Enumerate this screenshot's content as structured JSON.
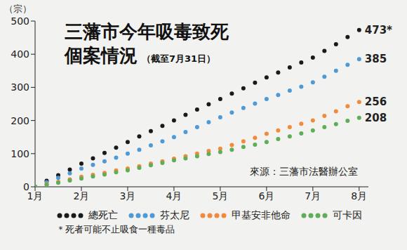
{
  "chart_data": {
    "type": "line",
    "title": [
      "三藩市今年吸毒致死",
      "個案情況"
    ],
    "subtitle": "（截至7月31日）",
    "y_label": "（宗）",
    "annotations": [
      "來源：三藩市法醫辦公室",
      "＊死者可能不止吸食一種毒品"
    ],
    "x": [
      1,
      1.25,
      1.5,
      1.75,
      2,
      2.25,
      2.5,
      2.75,
      3,
      3.25,
      3.5,
      3.75,
      4,
      4.25,
      4.5,
      4.75,
      5,
      5.25,
      5.5,
      5.75,
      6,
      6.25,
      6.5,
      6.75,
      7,
      7.25,
      7.5,
      7.75,
      8
    ],
    "xlim": [
      1,
      8.2
    ],
    "xticks": [
      {
        "value": 1,
        "label": "1月"
      },
      {
        "value": 2,
        "label": "2月"
      },
      {
        "value": 3,
        "label": "3月"
      },
      {
        "value": 4,
        "label": "4月"
      },
      {
        "value": 5,
        "label": "5月"
      },
      {
        "value": 6,
        "label": "6月"
      },
      {
        "value": 7,
        "label": "7月"
      },
      {
        "value": 8,
        "label": "8月"
      }
    ],
    "ylim": [
      0,
      500
    ],
    "yticks": [
      0,
      100,
      200,
      300,
      400,
      500
    ],
    "grid": false,
    "legend": "bottom",
    "marker": "circle",
    "line_style": "none",
    "series": [
      {
        "name": "總死亡",
        "color": "#1a1a1a",
        "values": [
          0,
          18,
          35,
          52,
          70,
          86,
          102,
          118,
          135,
          152,
          168,
          184,
          200,
          217,
          233,
          249,
          265,
          281,
          297,
          314,
          330,
          345,
          360,
          375,
          390,
          410,
          430,
          452,
          473
        ],
        "value_labels": [
          null,
          null,
          null,
          null,
          null,
          null,
          null,
          null,
          null,
          null,
          null,
          null,
          null,
          null,
          null,
          null,
          null,
          null,
          null,
          null,
          null,
          null,
          null,
          null,
          null,
          null,
          null,
          null,
          "473*"
        ]
      },
      {
        "name": "芬太尼",
        "color": "#4e9ad6",
        "values": [
          0,
          14,
          27,
          41,
          55,
          66,
          77,
          88,
          100,
          112,
          125,
          137,
          150,
          165,
          180,
          195,
          210,
          224,
          238,
          251,
          265,
          277,
          290,
          302,
          315,
          332,
          350,
          368,
          385
        ],
        "value_labels": [
          null,
          null,
          null,
          null,
          null,
          null,
          null,
          null,
          null,
          null,
          null,
          null,
          null,
          null,
          null,
          null,
          null,
          null,
          null,
          null,
          null,
          null,
          null,
          null,
          null,
          null,
          null,
          null,
          "385"
        ]
      },
      {
        "name": "甲基安非他命",
        "color": "#f28a3c",
        "values": [
          0,
          8,
          15,
          22,
          30,
          36,
          42,
          49,
          55,
          62,
          70,
          77,
          85,
          92,
          100,
          108,
          115,
          126,
          137,
          148,
          160,
          170,
          180,
          190,
          200,
          214,
          228,
          243,
          256
        ],
        "value_labels": [
          null,
          null,
          null,
          null,
          null,
          null,
          null,
          null,
          null,
          null,
          null,
          null,
          null,
          null,
          null,
          null,
          null,
          null,
          null,
          null,
          null,
          null,
          null,
          null,
          null,
          null,
          null,
          null,
          "256"
        ]
      },
      {
        "name": "可卡因",
        "color": "#5fae57",
        "values": [
          0,
          6,
          12,
          19,
          25,
          31,
          37,
          44,
          50,
          57,
          65,
          72,
          80,
          86,
          92,
          99,
          105,
          112,
          120,
          127,
          135,
          144,
          152,
          161,
          170,
          180,
          189,
          199,
          208
        ],
        "value_labels": [
          null,
          null,
          null,
          null,
          null,
          null,
          null,
          null,
          null,
          null,
          null,
          null,
          null,
          null,
          null,
          null,
          null,
          null,
          null,
          null,
          null,
          null,
          null,
          null,
          null,
          null,
          null,
          null,
          "208"
        ]
      }
    ]
  }
}
